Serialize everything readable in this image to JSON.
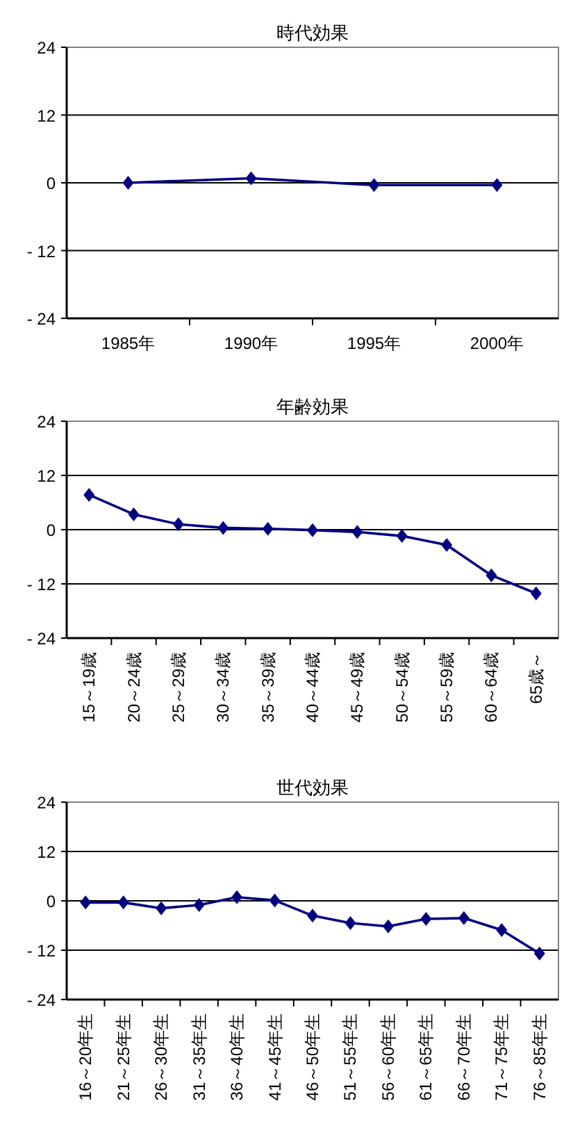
{
  "chart_data": [
    {
      "type": "line",
      "title": "時代効果",
      "categories": [
        "1985年",
        "1990年",
        "1995年",
        "2000年"
      ],
      "series": [
        {
          "color": "#000080",
          "values": [
            0,
            0.8,
            -0.4,
            -0.4
          ]
        }
      ],
      "ylim": [
        -24,
        24
      ],
      "yticks": [
        -24,
        -12,
        0,
        12,
        24
      ],
      "grid": "y",
      "marker": "diamond"
    },
    {
      "type": "line",
      "title": "年齢効果",
      "categories": [
        "15～19歳",
        "20～24歳",
        "25～29歳",
        "30～34歳",
        "35～39歳",
        "40～44歳",
        "45～49歳",
        "50～54歳",
        "55～59歳",
        "60～64歳",
        "65歳～"
      ],
      "series": [
        {
          "color": "#000080",
          "values": [
            7.7,
            3.4,
            1.2,
            0.4,
            0.2,
            -0.1,
            -0.5,
            -1.4,
            -3.4,
            -10.1,
            -14.1
          ]
        }
      ],
      "ylim": [
        -24,
        24
      ],
      "yticks": [
        -24,
        -12,
        0,
        12,
        24
      ],
      "grid": "y",
      "marker": "diamond"
    },
    {
      "type": "line",
      "title": "世代効果",
      "categories": [
        "16～20年生",
        "21～25年生",
        "26～30年生",
        "31～35年生",
        "36～40年生",
        "41～45年生",
        "46～50年生",
        "51～55年生",
        "56～60年生",
        "61～65年生",
        "66～70年生",
        "71～75年生",
        "76～85年生"
      ],
      "series": [
        {
          "color": "#000080",
          "values": [
            -0.4,
            -0.4,
            -1.8,
            -1.0,
            0.9,
            0.1,
            -3.6,
            -5.4,
            -6.2,
            -4.4,
            -4.2,
            -7.1,
            -12.8
          ]
        }
      ],
      "ylim": [
        -24,
        24
      ],
      "yticks": [
        -24,
        -12,
        0,
        12,
        24
      ],
      "grid": "y",
      "marker": "diamond"
    }
  ]
}
